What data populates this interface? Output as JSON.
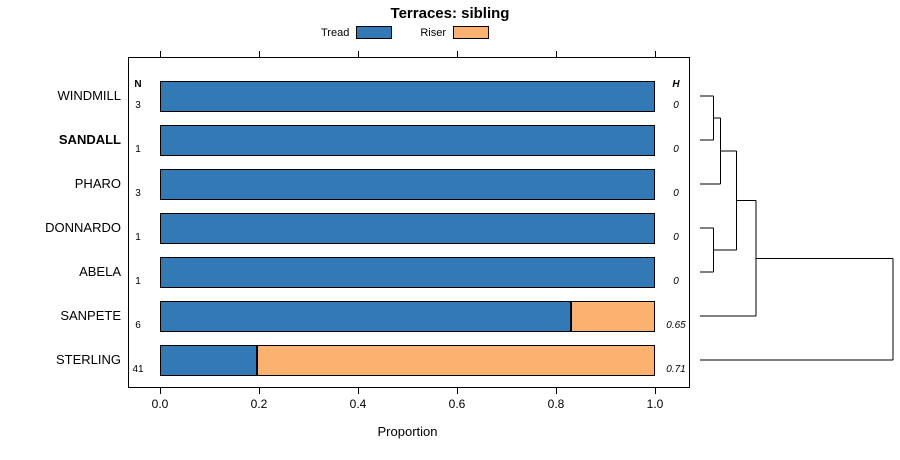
{
  "title": "Terraces: sibling",
  "xlabel": "Proportion",
  "columns": {
    "n_header": "N",
    "h_header": "H"
  },
  "legend": [
    {
      "label": "Tread",
      "color": "#3379B5"
    },
    {
      "label": "Riser",
      "color": "#FBB271"
    }
  ],
  "x_ticks": [
    {
      "label": "0.0",
      "value": 0.0
    },
    {
      "label": "0.2",
      "value": 0.2
    },
    {
      "label": "0.4",
      "value": 0.4
    },
    {
      "label": "0.6",
      "value": 0.6
    },
    {
      "label": "0.8",
      "value": 0.8
    },
    {
      "label": "1.0",
      "value": 1.0
    }
  ],
  "chart_data": {
    "type": "bar",
    "stacked": true,
    "orientation": "horizontal",
    "title": "Terraces: sibling",
    "xlabel": "Proportion",
    "xlim": [
      0,
      1
    ],
    "series_names": [
      "Tread",
      "Riser"
    ],
    "rows": [
      {
        "label": "WINDMILL",
        "bold": false,
        "n": "3",
        "h": "0",
        "tread": 1.0,
        "riser": 0.0
      },
      {
        "label": "SANDALL",
        "bold": true,
        "n": "1",
        "h": "0",
        "tread": 1.0,
        "riser": 0.0
      },
      {
        "label": "PHARO",
        "bold": false,
        "n": "3",
        "h": "0",
        "tread": 1.0,
        "riser": 0.0
      },
      {
        "label": "DONNARDO",
        "bold": false,
        "n": "1",
        "h": "0",
        "tread": 1.0,
        "riser": 0.0
      },
      {
        "label": "ABELA",
        "bold": false,
        "n": "1",
        "h": "0",
        "tread": 1.0,
        "riser": 0.0
      },
      {
        "label": "SANPETE",
        "bold": false,
        "n": "6",
        "h": "0.65",
        "tread": 0.83,
        "riser": 0.17
      },
      {
        "label": "STERLING",
        "bold": false,
        "n": "41",
        "h": "0.71",
        "tread": 0.195,
        "riser": 0.805
      }
    ],
    "dendrogram": {
      "method": "sibling",
      "leaf_order": [
        "WINDMILL",
        "SANDALL",
        "PHARO",
        "DONNARDO",
        "ABELA",
        "SANPETE",
        "STERLING"
      ],
      "merges": [
        {
          "a": "WINDMILL",
          "b": "SANDALL",
          "height": 0.07
        },
        {
          "a": "M0",
          "b": "PHARO",
          "height": 0.105
        },
        {
          "a": "DONNARDO",
          "b": "ABELA",
          "height": 0.07
        },
        {
          "a": "M1",
          "b": "M2",
          "height": 0.19
        },
        {
          "a": "M3",
          "b": "SANPETE",
          "height": 0.29
        },
        {
          "a": "M4",
          "b": "STERLING",
          "height": 1.0
        }
      ]
    }
  }
}
